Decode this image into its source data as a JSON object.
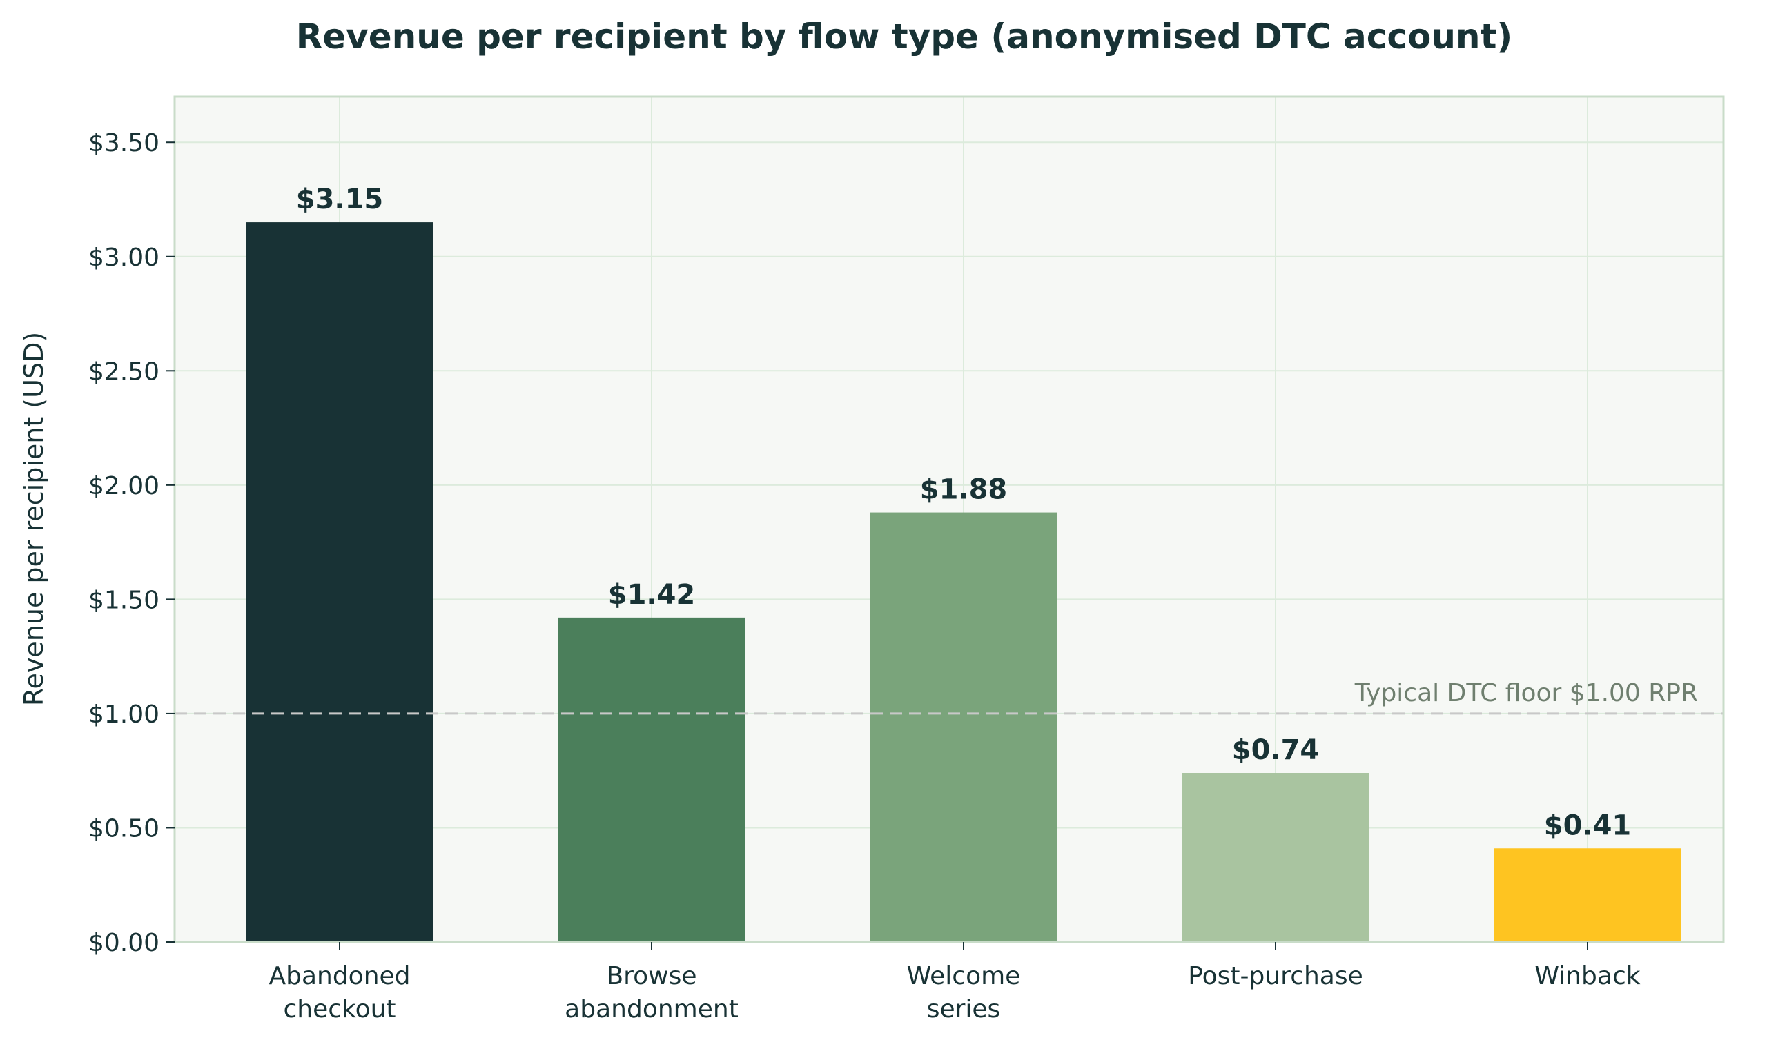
{
  "chart_data": {
    "type": "bar",
    "title": "Revenue per recipient by flow type (anonymised DTC account)",
    "xlabel": "",
    "ylabel": "Revenue per recipient (USD)",
    "categories": [
      [
        "Abandoned",
        "checkout"
      ],
      [
        "Browse",
        "abandonment"
      ],
      [
        "Welcome",
        "series"
      ],
      [
        "Post-purchase"
      ],
      [
        "Winback"
      ]
    ],
    "values": [
      3.15,
      1.42,
      1.88,
      0.74,
      0.41
    ],
    "value_labels": [
      "$3.15",
      "$1.42",
      "$1.88",
      "$0.74",
      "$0.41"
    ],
    "bar_colors": [
      "#183235",
      "#4b7f5b",
      "#7aa47b",
      "#a9c4a0",
      "#fec421"
    ],
    "ylim": [
      0,
      3.7
    ],
    "yticks": [
      0,
      0.5,
      1.0,
      1.5,
      2.0,
      2.5,
      3.0,
      3.5
    ],
    "ytick_labels": [
      "$0.00",
      "$0.50",
      "$1.00",
      "$1.50",
      "$2.00",
      "$2.50",
      "$3.00",
      "$3.50"
    ],
    "grid": true,
    "reference_line": {
      "value": 1.0,
      "label": "Typical DTC floor  $1.00 RPR",
      "style": "dashed"
    },
    "colors": {
      "plot_background": "#f6f8f5",
      "grid": "#dcebdc",
      "axis": "#c9dcc9",
      "text": "#183235",
      "reference_line": "#c8c8c8",
      "annotation_text": "#6f7f6f"
    }
  }
}
